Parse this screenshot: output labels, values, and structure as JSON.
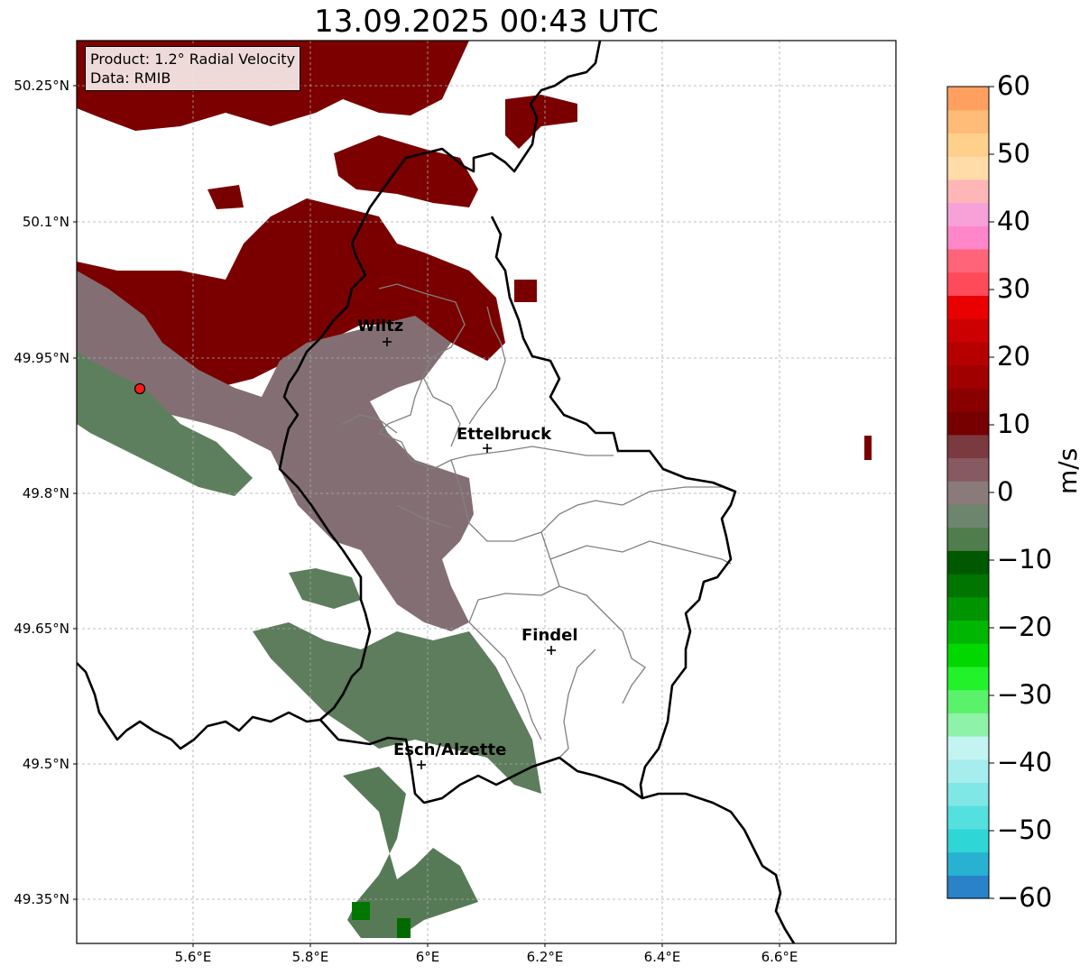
{
  "title": "13.09.2025 00:43 UTC",
  "info": {
    "product": "Product: 1.2° Radial Velocity",
    "data": "Data: RMIB"
  },
  "cities": [
    {
      "name": "Wiltz",
      "lon": 5.93,
      "lat": 49.966
    },
    {
      "name": "Ettelbruck",
      "lon": 6.1,
      "lat": 49.85
    },
    {
      "name": "Findel",
      "lon": 6.21,
      "lat": 49.627
    },
    {
      "name": "Esch/Alzette",
      "lon": 5.99,
      "lat": 49.5
    }
  ],
  "radar_site": {
    "lon": 5.505,
    "lat": 49.914
  },
  "axes": {
    "lon_range": [
      5.4,
      6.8
    ],
    "lat_range": [
      49.3,
      50.3
    ],
    "lat_ticks": [
      {
        "value": 50.25,
        "label": "50.25°N"
      },
      {
        "value": 50.1,
        "label": "50.1°N"
      },
      {
        "value": 49.95,
        "label": "49.95°N"
      },
      {
        "value": 49.8,
        "label": "49.8°N"
      },
      {
        "value": 49.65,
        "label": "49.65°N"
      },
      {
        "value": 49.5,
        "label": "49.5°N"
      },
      {
        "value": 49.35,
        "label": "49.35°N"
      }
    ],
    "lon_ticks": [
      {
        "value": 5.6,
        "label": "5.6°E"
      },
      {
        "value": 5.8,
        "label": "5.8°E"
      },
      {
        "value": 6.0,
        "label": "6°E"
      },
      {
        "value": 6.2,
        "label": "6.2°E"
      },
      {
        "value": 6.4,
        "label": "6.4°E"
      },
      {
        "value": 6.6,
        "label": "6.6°E"
      }
    ]
  },
  "colorbar": {
    "label": "m/s",
    "range": [
      -60,
      60
    ],
    "ticks": [
      {
        "value": 60,
        "label": "60"
      },
      {
        "value": 50,
        "label": "50"
      },
      {
        "value": 40,
        "label": "40"
      },
      {
        "value": 30,
        "label": "30"
      },
      {
        "value": 20,
        "label": "20"
      },
      {
        "value": 10,
        "label": "10"
      },
      {
        "value": 0,
        "label": "0"
      },
      {
        "value": -10,
        "label": "−10"
      },
      {
        "value": -20,
        "label": "−20"
      },
      {
        "value": -30,
        "label": "−30"
      },
      {
        "value": -40,
        "label": "−40"
      },
      {
        "value": -50,
        "label": "−50"
      },
      {
        "value": -60,
        "label": "−60"
      }
    ],
    "colors": [
      "#2a82c8",
      "#27b2d2",
      "#2fd6d6",
      "#54e0df",
      "#7fe7e6",
      "#a6eeee",
      "#c3f4f2",
      "#8ef3a8",
      "#5af26a",
      "#22f22a",
      "#00d800",
      "#00b600",
      "#009400",
      "#007500",
      "#005900",
      "#4f7d4c",
      "#6d856d",
      "#8b7a7a",
      "#865a60",
      "#7a3a40",
      "#760000",
      "#8a0000",
      "#a10000",
      "#b60000",
      "#cc0000",
      "#ea0000",
      "#ff4a5a",
      "#ff6478",
      "#ff86c8",
      "#f6a2d8",
      "#ffb6b6",
      "#ffdca8",
      "#ffd08c",
      "#ffbc78",
      "#ffa060"
    ]
  },
  "colors": {
    "outflow": "#7a0000",
    "near_zero": "#836f73",
    "inflow": "#5d7d5d",
    "green": "#00a000",
    "border": "#000000",
    "admin": "#808080"
  }
}
